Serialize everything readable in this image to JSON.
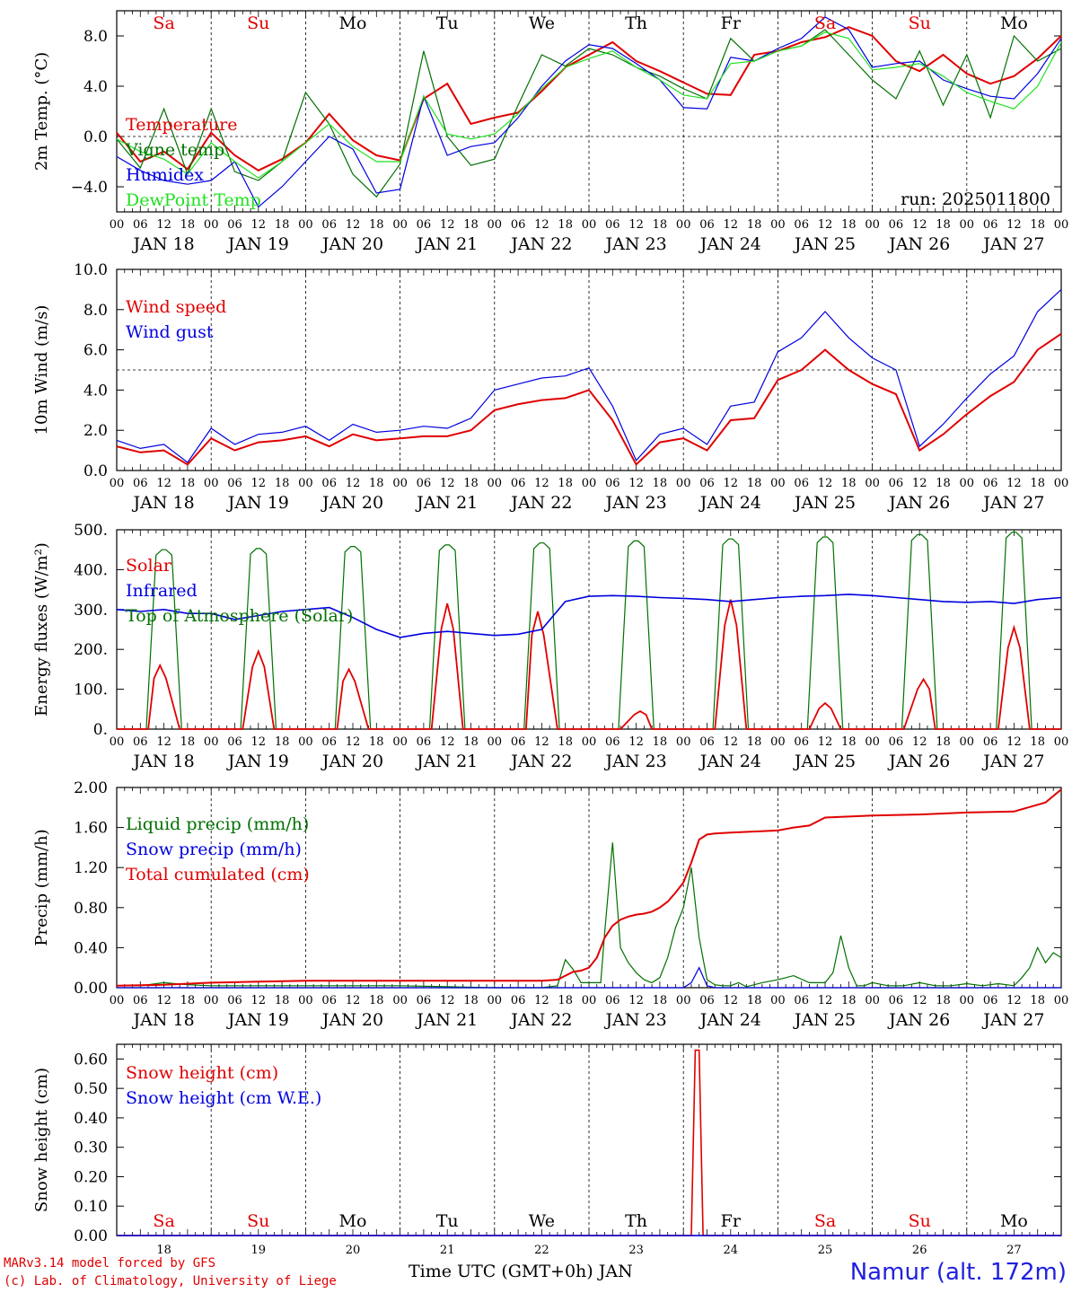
{
  "days": [
    "Sa",
    "Su",
    "Mo",
    "Tu",
    "We",
    "Th",
    "Fr",
    "Sa",
    "Su",
    "Mo"
  ],
  "day_colors": [
    "#e00000",
    "#e00000",
    "#000000",
    "#000000",
    "#000000",
    "#000000",
    "#000000",
    "#e00000",
    "#e00000",
    "#000000"
  ],
  "date_labels": [
    "JAN 18",
    "JAN 19",
    "JAN 20",
    "JAN 21",
    "JAN 22",
    "JAN 23",
    "JAN 24",
    "JAN 25",
    "JAN 26",
    "JAN 27"
  ],
  "day_numbers": [
    "18",
    "19",
    "20",
    "21",
    "22",
    "23",
    "24",
    "25",
    "26",
    "27"
  ],
  "hour_ticks": [
    "00",
    "06",
    "12",
    "18"
  ],
  "hour_end": "00",
  "footer": {
    "model": "MARv3.14 model forced by GFS",
    "credit": "(c) Lab. of Climatology, University of Liege",
    "xlabel": "Time UTC (GMT+0h) JAN",
    "station": "Namur (alt. 172m)"
  },
  "chart_data": [
    {
      "type": "line",
      "ylabel": "2m Temp. (°C)",
      "ylim": [
        -6.0,
        10.0
      ],
      "yticks": [
        "8.0",
        "4.0",
        "0.0",
        "−4.0"
      ],
      "ytick_values": [
        8,
        4,
        0,
        -4
      ],
      "ref_line": 0,
      "annotation": "run: 2025011800",
      "x_unit": "hours from JAN 18 00 UTC",
      "series": [
        {
          "name": "Temperature",
          "color": "#e00000",
          "x": [
            0,
            6,
            12,
            18,
            24,
            30,
            36,
            42,
            48,
            54,
            60,
            66,
            72,
            78,
            84,
            90,
            96,
            102,
            108,
            114,
            120,
            126,
            132,
            138,
            144,
            150,
            156,
            162,
            168,
            174,
            180,
            186,
            192,
            198,
            204,
            210,
            216,
            222,
            228,
            234,
            240
          ],
          "y": [
            0.3,
            -2.0,
            -1.2,
            -2.6,
            0.3,
            -1.5,
            -2.7,
            -1.8,
            -0.5,
            1.8,
            -0.3,
            -1.5,
            -1.9,
            3.0,
            4.2,
            1.0,
            1.5,
            1.9,
            3.6,
            5.5,
            6.5,
            7.5,
            6.0,
            5.2,
            4.3,
            3.4,
            3.3,
            6.5,
            6.8,
            7.5,
            7.9,
            8.7,
            8.0,
            6.0,
            5.2,
            6.5,
            5.0,
            4.2,
            4.8,
            6.2,
            8.0
          ]
        },
        {
          "name": "Vigne temp",
          "color": "#007000",
          "x": [
            0,
            6,
            12,
            18,
            24,
            30,
            36,
            42,
            48,
            54,
            60,
            66,
            72,
            78,
            84,
            90,
            96,
            102,
            108,
            114,
            120,
            126,
            132,
            138,
            144,
            150,
            156,
            162,
            168,
            174,
            180,
            186,
            192,
            198,
            204,
            210,
            216,
            222,
            228,
            234,
            240
          ],
          "y": [
            -0.2,
            -2.5,
            2.2,
            -3.0,
            2.2,
            -2.8,
            -3.5,
            -2.0,
            3.5,
            1.0,
            -3.0,
            -4.8,
            -2.2,
            6.8,
            0.0,
            -2.3,
            -1.8,
            2.5,
            6.5,
            5.6,
            7.0,
            6.5,
            5.5,
            4.8,
            3.8,
            3.0,
            7.8,
            6.0,
            6.8,
            7.2,
            8.5,
            6.5,
            4.5,
            3.0,
            6.8,
            2.5,
            6.5,
            1.5,
            8.0,
            6.0,
            7.0
          ]
        },
        {
          "name": "Humidex",
          "color": "#0000e0",
          "x": [
            0,
            6,
            12,
            18,
            24,
            30,
            36,
            42,
            48,
            54,
            60,
            66,
            72,
            78,
            84,
            90,
            96,
            102,
            108,
            114,
            120,
            126,
            132,
            138,
            144,
            150,
            156,
            162,
            168,
            174,
            180,
            186,
            192,
            198,
            204,
            210,
            216,
            222,
            228,
            234,
            240
          ],
          "y": [
            -1.6,
            -2.7,
            -3.5,
            -3.8,
            -3.5,
            -2.0,
            -5.6,
            -4.0,
            -2.0,
            0.0,
            -1.0,
            -4.5,
            -4.2,
            3.2,
            -1.5,
            -0.8,
            -0.5,
            1.5,
            4.0,
            6.0,
            7.3,
            7.0,
            5.8,
            4.5,
            2.3,
            2.2,
            6.3,
            6.0,
            7.0,
            7.8,
            9.5,
            8.5,
            5.5,
            5.8,
            6.0,
            4.5,
            3.8,
            3.2,
            3.0,
            5.0,
            7.8
          ]
        },
        {
          "name": "DewPoint Temp",
          "color": "#20e020",
          "x": [
            0,
            6,
            12,
            18,
            24,
            30,
            36,
            42,
            48,
            54,
            60,
            66,
            72,
            78,
            84,
            90,
            96,
            102,
            108,
            114,
            120,
            126,
            132,
            138,
            144,
            150,
            156,
            162,
            168,
            174,
            180,
            186,
            192,
            198,
            204,
            210,
            216,
            222,
            228,
            234,
            240
          ],
          "y": [
            -0.2,
            -1.2,
            -1.8,
            -3.0,
            -0.5,
            -2.0,
            -3.3,
            -2.0,
            -0.5,
            1.0,
            -0.8,
            -2.0,
            -2.0,
            3.2,
            0.2,
            -0.2,
            0.2,
            1.8,
            3.8,
            5.5,
            6.2,
            6.8,
            5.5,
            4.5,
            3.3,
            3.0,
            5.8,
            6.0,
            6.8,
            7.2,
            8.3,
            7.8,
            5.3,
            5.5,
            5.8,
            4.8,
            3.5,
            2.8,
            2.2,
            4.0,
            7.5
          ]
        }
      ]
    },
    {
      "type": "line",
      "ylabel": "10m Wind (m/s)",
      "ylim": [
        0.0,
        10.0
      ],
      "yticks": [
        "10.0",
        "8.0",
        "6.0",
        "4.0",
        "2.0",
        "0.0"
      ],
      "ytick_values": [
        10,
        8,
        6,
        4,
        2,
        0
      ],
      "ref_line": 5,
      "x_unit": "hours from JAN 18 00 UTC",
      "series": [
        {
          "name": "Wind speed",
          "color": "#e00000",
          "x": [
            0,
            6,
            12,
            18,
            24,
            30,
            36,
            42,
            48,
            54,
            60,
            66,
            72,
            78,
            84,
            90,
            96,
            102,
            108,
            114,
            120,
            126,
            132,
            138,
            144,
            150,
            156,
            162,
            168,
            174,
            180,
            186,
            192,
            198,
            204,
            210,
            216,
            222,
            228,
            234,
            240
          ],
          "y": [
            1.2,
            0.9,
            1.0,
            0.3,
            1.6,
            1.0,
            1.4,
            1.5,
            1.7,
            1.2,
            1.8,
            1.5,
            1.6,
            1.7,
            1.7,
            2.0,
            3.0,
            3.3,
            3.5,
            3.6,
            4.0,
            2.5,
            0.3,
            1.4,
            1.6,
            1.0,
            2.5,
            2.6,
            4.5,
            5.0,
            6.0,
            5.0,
            4.3,
            3.8,
            1.0,
            1.8,
            2.8,
            3.7,
            4.4,
            6.0,
            6.8
          ]
        },
        {
          "name": "Wind gust",
          "color": "#0000e0",
          "x": [
            0,
            6,
            12,
            18,
            24,
            30,
            36,
            42,
            48,
            54,
            60,
            66,
            72,
            78,
            84,
            90,
            96,
            102,
            108,
            114,
            120,
            126,
            132,
            138,
            144,
            150,
            156,
            162,
            168,
            174,
            180,
            186,
            192,
            198,
            204,
            210,
            216,
            222,
            228,
            234,
            240
          ],
          "y": [
            1.5,
            1.1,
            1.3,
            0.4,
            2.1,
            1.3,
            1.8,
            1.9,
            2.2,
            1.5,
            2.3,
            1.9,
            2.0,
            2.2,
            2.1,
            2.6,
            4.0,
            4.3,
            4.6,
            4.7,
            5.1,
            3.2,
            0.5,
            1.8,
            2.1,
            1.3,
            3.2,
            3.4,
            5.9,
            6.6,
            7.9,
            6.6,
            5.6,
            5.0,
            1.2,
            2.3,
            3.6,
            4.8,
            5.7,
            7.9,
            9.0
          ]
        }
      ]
    },
    {
      "type": "line",
      "ylabel": "Energy fluxes (W/m²)",
      "ylim": [
        0,
        500
      ],
      "yticks": [
        "500.",
        "400.",
        "300.",
        "200.",
        "100.",
        "0."
      ],
      "ytick_values": [
        500,
        400,
        300,
        200,
        100,
        0
      ],
      "x_unit": "hours from JAN 18 00 UTC",
      "series": [
        {
          "name": "Solar",
          "color": "#e00000",
          "peaks": [
            160,
            195,
            150,
            315,
            295,
            45,
            325,
            65,
            125,
            255
          ],
          "peak_hours": [
            11,
            12,
            11,
            12,
            11,
            13,
            12,
            12,
            13,
            12
          ]
        },
        {
          "name": "Infrared",
          "color": "#0000e0",
          "x": [
            0,
            6,
            12,
            18,
            24,
            30,
            36,
            42,
            48,
            54,
            60,
            66,
            72,
            78,
            84,
            90,
            96,
            102,
            108,
            114,
            120,
            126,
            132,
            138,
            144,
            150,
            156,
            162,
            168,
            174,
            180,
            186,
            192,
            198,
            204,
            210,
            216,
            222,
            228,
            234,
            240
          ],
          "y": [
            300,
            295,
            300,
            290,
            290,
            275,
            285,
            295,
            300,
            305,
            280,
            250,
            230,
            240,
            245,
            240,
            235,
            238,
            250,
            320,
            333,
            335,
            333,
            330,
            328,
            325,
            320,
            325,
            330,
            333,
            335,
            338,
            335,
            330,
            325,
            320,
            318,
            320,
            315,
            325,
            330
          ]
        },
        {
          "name": "Top of Atmosphere (Solar)",
          "color": "#007000",
          "peaks": [
            450,
            453,
            458,
            462,
            467,
            472,
            477,
            482,
            488,
            494
          ]
        }
      ]
    },
    {
      "type": "line",
      "ylabel": "Precip (mm/h)",
      "ylim": [
        0.0,
        2.0
      ],
      "yticks": [
        "2.00",
        "1.60",
        "1.20",
        "0.80",
        "0.40",
        "0.00"
      ],
      "ytick_values": [
        2.0,
        1.6,
        1.2,
        0.8,
        0.4,
        0.0
      ],
      "x_unit": "hours from JAN 18 00 UTC",
      "series": [
        {
          "name": "Liquid precip (mm/h)",
          "color": "#007000",
          "x": [
            0,
            6,
            12,
            18,
            24,
            36,
            48,
            60,
            72,
            84,
            96,
            108,
            112,
            114,
            116,
            118,
            120,
            123,
            124,
            126,
            128,
            130,
            132,
            134,
            136,
            138,
            140,
            142,
            144,
            146,
            148,
            150,
            152,
            154,
            156,
            158,
            160,
            164,
            168,
            172,
            176,
            180,
            182,
            184,
            186,
            188,
            190,
            192,
            196,
            200,
            204,
            208,
            212,
            216,
            220,
            224,
            228,
            230,
            232,
            234,
            236,
            238,
            240
          ],
          "y": [
            0.02,
            0.02,
            0.05,
            0.03,
            0.02,
            0.02,
            0.02,
            0.02,
            0.02,
            0.01,
            0.0,
            0.0,
            0.02,
            0.28,
            0.18,
            0.05,
            0.05,
            0.05,
            0.55,
            1.45,
            0.4,
            0.25,
            0.15,
            0.08,
            0.05,
            0.1,
            0.3,
            0.6,
            0.8,
            1.2,
            0.5,
            0.08,
            0.03,
            0.02,
            0.02,
            0.05,
            0.01,
            0.05,
            0.08,
            0.12,
            0.05,
            0.05,
            0.15,
            0.52,
            0.2,
            0.02,
            0.02,
            0.05,
            0.02,
            0.02,
            0.05,
            0.02,
            0.02,
            0.04,
            0.02,
            0.04,
            0.02,
            0.1,
            0.2,
            0.4,
            0.25,
            0.35,
            0.3
          ]
        },
        {
          "name": "Snow precip (mm/h)",
          "color": "#0000e0",
          "x": [
            0,
            6,
            12,
            18,
            144,
            146,
            148,
            150,
            152,
            240
          ],
          "y": [
            0.0,
            0.0,
            0.0,
            0.0,
            0.0,
            0.05,
            0.2,
            0.02,
            0.0,
            0.0
          ]
        },
        {
          "name": "Total cumulated (cm)",
          "color": "#e00000",
          "x": [
            0,
            12,
            24,
            36,
            48,
            60,
            72,
            84,
            96,
            108,
            112,
            114,
            116,
            118,
            120,
            122,
            124,
            126,
            128,
            130,
            132,
            134,
            136,
            138,
            140,
            142,
            144,
            146,
            148,
            150,
            152,
            156,
            168,
            172,
            174,
            176,
            180,
            192,
            204,
            216,
            228,
            236,
            240
          ],
          "y": [
            0.02,
            0.03,
            0.05,
            0.06,
            0.07,
            0.07,
            0.07,
            0.07,
            0.07,
            0.07,
            0.08,
            0.12,
            0.16,
            0.17,
            0.2,
            0.3,
            0.5,
            0.62,
            0.68,
            0.71,
            0.73,
            0.74,
            0.76,
            0.8,
            0.86,
            0.95,
            1.05,
            1.25,
            1.48,
            1.53,
            1.54,
            1.55,
            1.57,
            1.6,
            1.61,
            1.62,
            1.7,
            1.72,
            1.73,
            1.75,
            1.76,
            1.85,
            1.98
          ]
        }
      ]
    },
    {
      "type": "line",
      "ylabel": "Snow height (cm)",
      "ylim": [
        0.0,
        0.65
      ],
      "yticks": [
        "0.60",
        "0.50",
        "0.40",
        "0.30",
        "0.20",
        "0.10",
        "0.00"
      ],
      "ytick_values": [
        0.6,
        0.5,
        0.4,
        0.3,
        0.2,
        0.1,
        0.0
      ],
      "x_unit": "hours from JAN 18 00 UTC",
      "series": [
        {
          "name": "Snow height (cm)",
          "color": "#e00000",
          "x": [
            0,
            146,
            147,
            148,
            149,
            240
          ],
          "y": [
            0,
            0,
            0.63,
            0.63,
            0,
            0
          ]
        },
        {
          "name": "Snow height (cm W.E.)",
          "color": "#0000e0",
          "x": [
            0,
            240
          ],
          "y": [
            0,
            0
          ]
        }
      ]
    }
  ]
}
